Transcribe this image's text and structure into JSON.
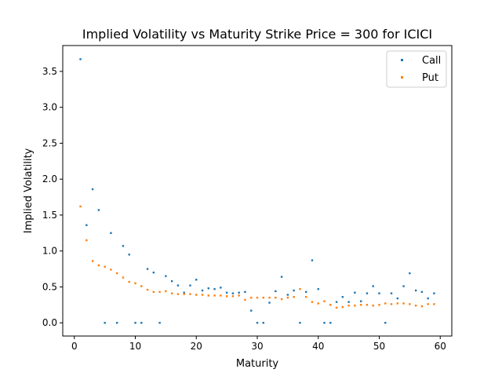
{
  "chart_data": {
    "type": "scatter",
    "title": "Implied Volatility vs Maturity Strike Price = 300 for ICICI",
    "xlabel": "Maturity",
    "ylabel": "Implied Volatility",
    "xlim": [
      -1.9,
      61.9
    ],
    "ylim": [
      -0.184,
      3.86
    ],
    "xticks": [
      0,
      10,
      20,
      30,
      40,
      50,
      60
    ],
    "xtick_labels": [
      "0",
      "10",
      "20",
      "30",
      "40",
      "50",
      "60"
    ],
    "yticks": [
      0.0,
      0.5,
      1.0,
      1.5,
      2.0,
      2.5,
      3.0,
      3.5
    ],
    "ytick_labels": [
      "0.0",
      "0.5",
      "1.0",
      "1.5",
      "2.0",
      "2.5",
      "3.0",
      "3.5"
    ],
    "grid": false,
    "legend_position": "top-right",
    "series": [
      {
        "name": "Call",
        "color": "#1f77b4",
        "x": [
          1,
          2,
          3,
          4,
          5,
          6,
          7,
          8,
          9,
          10,
          11,
          12,
          13,
          14,
          15,
          16,
          17,
          18,
          19,
          20,
          21,
          22,
          23,
          24,
          25,
          26,
          27,
          28,
          29,
          30,
          31,
          32,
          33,
          34,
          35,
          36,
          37,
          38,
          39,
          40,
          41,
          42,
          43,
          44,
          45,
          46,
          47,
          48,
          49,
          50,
          51,
          52,
          53,
          54,
          55,
          56,
          57,
          58,
          59
        ],
        "y": [
          3.67,
          1.36,
          1.86,
          1.57,
          0.0,
          1.25,
          0.0,
          1.07,
          0.95,
          0.0,
          0.0,
          0.75,
          0.7,
          0.0,
          0.65,
          0.58,
          0.52,
          0.42,
          0.52,
          0.6,
          0.45,
          0.48,
          0.47,
          0.49,
          0.42,
          0.41,
          0.42,
          0.43,
          0.17,
          0.0,
          0.0,
          0.28,
          0.44,
          0.64,
          0.39,
          0.45,
          0.0,
          0.43,
          0.87,
          0.47,
          0.0,
          0.0,
          0.29,
          0.36,
          0.29,
          0.42,
          0.3,
          0.41,
          0.51,
          0.41,
          0.0,
          0.41,
          0.34,
          0.51,
          0.69,
          0.45,
          0.43,
          0.34,
          0.41
        ]
      },
      {
        "name": "Put",
        "color": "#ff7f0e",
        "x": [
          1,
          2,
          3,
          4,
          5,
          6,
          7,
          8,
          9,
          10,
          11,
          12,
          13,
          14,
          15,
          16,
          17,
          18,
          19,
          20,
          21,
          22,
          23,
          24,
          25,
          26,
          27,
          28,
          29,
          30,
          31,
          32,
          33,
          34,
          35,
          36,
          37,
          38,
          39,
          40,
          41,
          42,
          43,
          44,
          45,
          46,
          47,
          48,
          49,
          50,
          51,
          52,
          53,
          54,
          55,
          56,
          57,
          58,
          59
        ],
        "y": [
          1.62,
          1.15,
          0.86,
          0.8,
          0.78,
          0.74,
          0.69,
          0.63,
          0.57,
          0.55,
          0.51,
          0.46,
          0.43,
          0.43,
          0.44,
          0.41,
          0.4,
          0.4,
          0.4,
          0.39,
          0.39,
          0.38,
          0.38,
          0.38,
          0.37,
          0.37,
          0.38,
          0.32,
          0.35,
          0.35,
          0.35,
          0.35,
          0.35,
          0.33,
          0.35,
          0.36,
          0.47,
          0.36,
          0.29,
          0.27,
          0.3,
          0.25,
          0.21,
          0.22,
          0.24,
          0.24,
          0.25,
          0.25,
          0.24,
          0.25,
          0.27,
          0.26,
          0.27,
          0.27,
          0.26,
          0.24,
          0.23,
          0.26,
          0.26
        ]
      }
    ]
  }
}
